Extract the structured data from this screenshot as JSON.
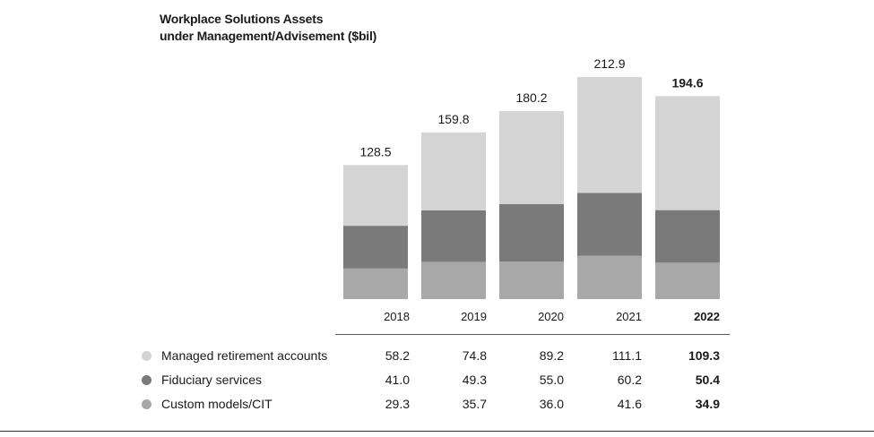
{
  "title_line1": "Workplace Solutions Assets",
  "title_line2": "under Management/Advisement ($bil)",
  "chart_data": {
    "type": "bar",
    "stacked": true,
    "title": "Workplace Solutions Assets under Management/Advisement ($bil)",
    "categories": [
      "2018",
      "2019",
      "2020",
      "2021",
      "2022"
    ],
    "highlight_category": "2022",
    "totals": [
      "128.5",
      "159.8",
      "180.2",
      "212.9",
      "194.6"
    ],
    "series": [
      {
        "name": "Custom models/CIT",
        "values": [
          29.3,
          35.7,
          36.0,
          41.6,
          34.9
        ],
        "color": "#a8a8a8"
      },
      {
        "name": "Fiduciary services",
        "values": [
          41.0,
          49.3,
          55.0,
          60.2,
          50.4
        ],
        "color": "#7a7a7a"
      },
      {
        "name": "Managed retirement accounts",
        "values": [
          58.2,
          74.8,
          89.2,
          111.1,
          109.3
        ],
        "color": "#d4d4d4"
      }
    ],
    "ylim": [
      0,
      212.9
    ]
  },
  "table": {
    "rows": [
      {
        "label": "Managed retirement accounts",
        "color": "#d4d4d4",
        "values": [
          "58.2",
          "74.8",
          "89.2",
          "111.1",
          "109.3"
        ]
      },
      {
        "label": "Fiduciary services",
        "color": "#7a7a7a",
        "values": [
          "41.0",
          "49.3",
          "55.0",
          "60.2",
          "50.4"
        ]
      },
      {
        "label": "Custom models/CIT",
        "color": "#a8a8a8",
        "values": [
          "29.3",
          "35.7",
          "36.0",
          "41.6",
          "34.9"
        ]
      }
    ]
  }
}
